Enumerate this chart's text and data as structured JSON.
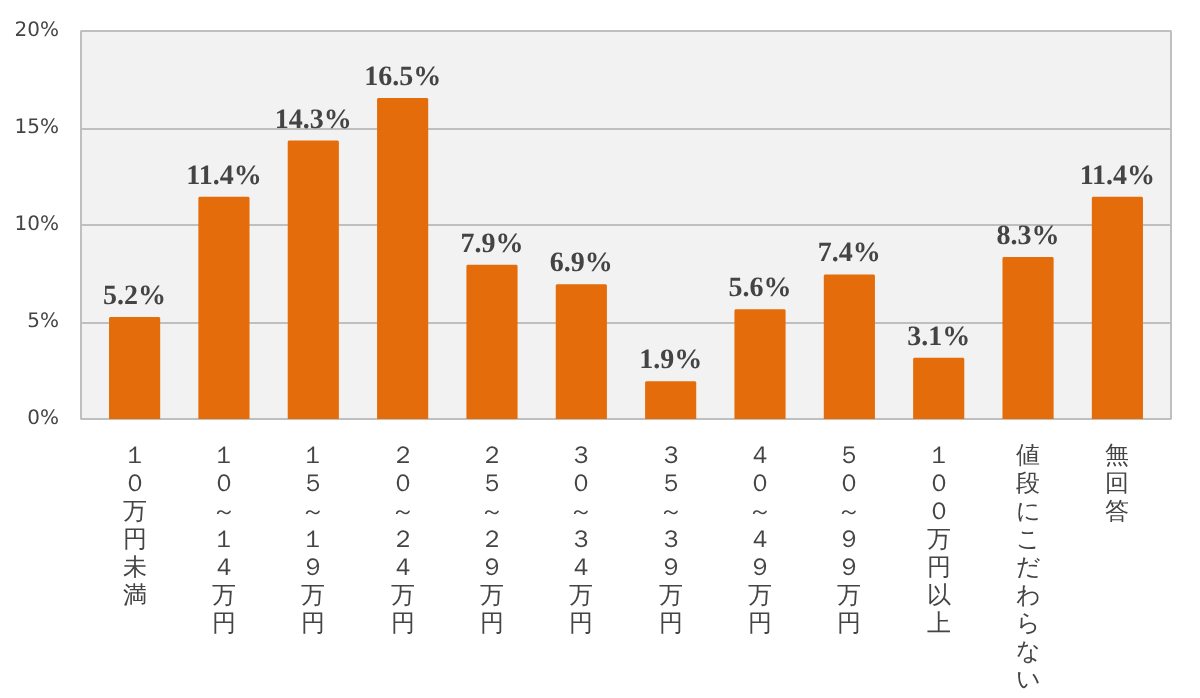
{
  "chart_data": {
    "type": "bar",
    "categories": [
      "１０万円未満",
      "１０～１４万円",
      "１５～１９万円",
      "２０～２４万円",
      "２５～２９万円",
      "３０～３４万円",
      "３５～３９万円",
      "４０～４９万円",
      "５０～９９万円",
      "１００万円以上",
      "値段にこだわらない",
      "無回答"
    ],
    "values": [
      5.2,
      11.4,
      14.3,
      16.5,
      7.9,
      6.9,
      1.9,
      5.6,
      7.4,
      3.1,
      8.3,
      11.4
    ],
    "value_labels": [
      "5.2%",
      "11.4%",
      "14.3%",
      "16.5%",
      "7.9%",
      "6.9%",
      "1.9%",
      "5.6%",
      "7.4%",
      "3.1%",
      "8.3%",
      "11.4%"
    ],
    "color": "#e46c0a",
    "ylim": [
      0,
      20
    ],
    "yticks": [
      {
        "value": 0,
        "label": "0%"
      },
      {
        "value": 5,
        "label": "5%"
      },
      {
        "value": 10,
        "label": "10%"
      },
      {
        "value": 15,
        "label": "15%"
      },
      {
        "value": 20,
        "label": "20%"
      }
    ],
    "grid": "y"
  }
}
